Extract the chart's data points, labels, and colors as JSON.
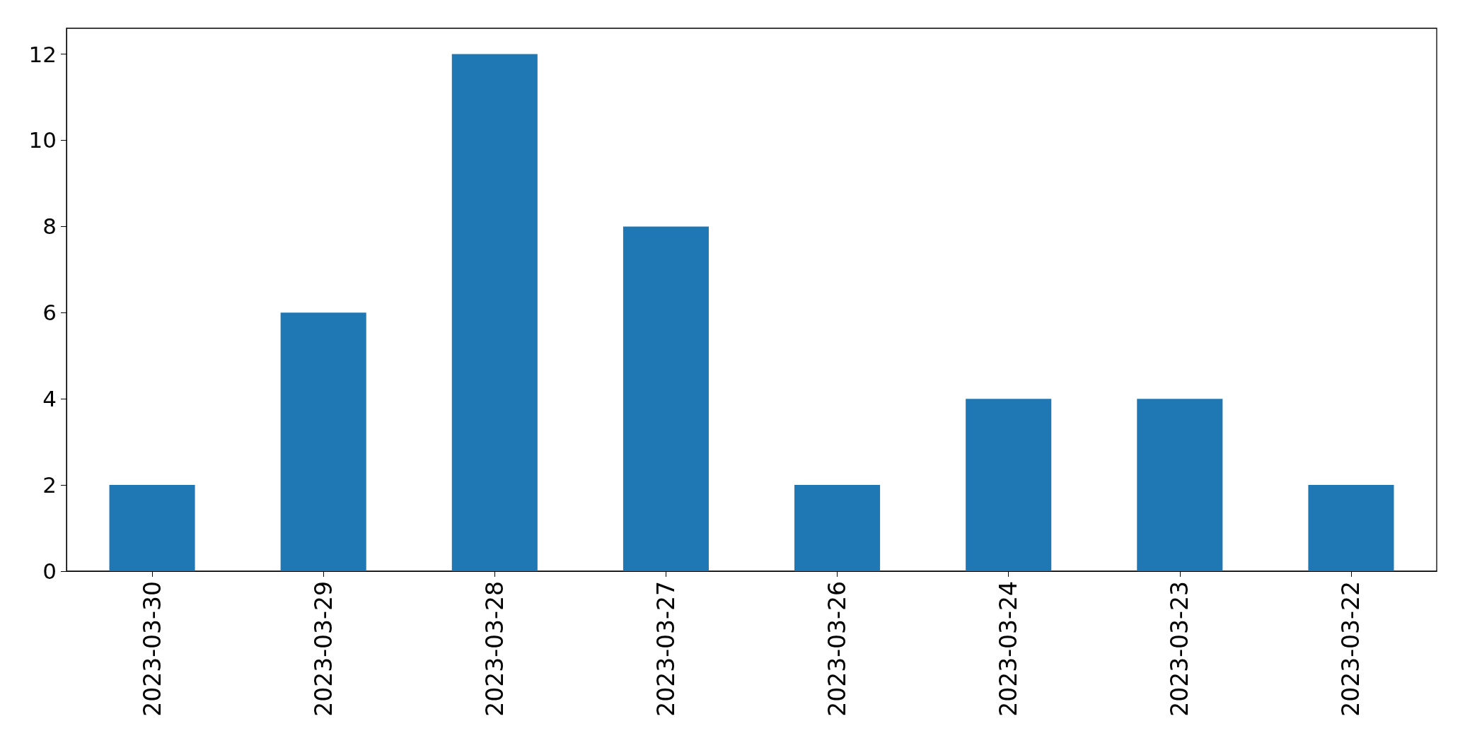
{
  "chart_data": {
    "type": "bar",
    "categories": [
      "2023-03-30",
      "2023-03-29",
      "2023-03-28",
      "2023-03-27",
      "2023-03-26",
      "2023-03-24",
      "2023-03-23",
      "2023-03-22"
    ],
    "values": [
      2,
      6,
      12,
      8,
      2,
      4,
      4,
      2
    ],
    "color": "#1f77b4",
    "ylim": [
      0,
      12.6
    ],
    "yticks": [
      0,
      2,
      4,
      6,
      8,
      10,
      12
    ],
    "grid": false
  }
}
